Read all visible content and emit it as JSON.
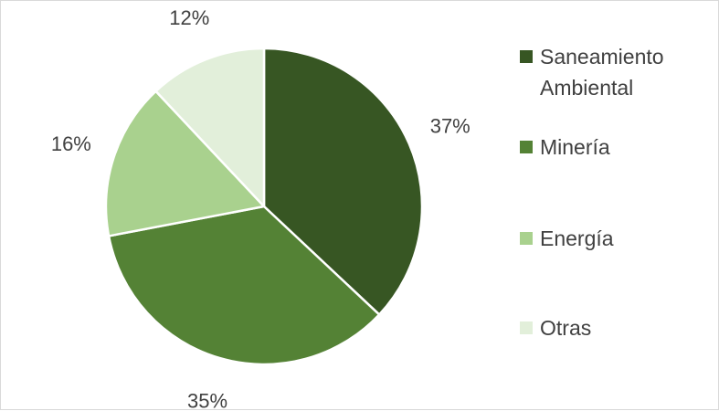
{
  "chart_data": {
    "type": "pie",
    "title": "",
    "categories": [
      "Saneamiento Ambiental",
      "Minería",
      "Energía",
      "Otras"
    ],
    "values": [
      37,
      35,
      16,
      12
    ],
    "labels": [
      "37%",
      "35%",
      "16%",
      "12%"
    ],
    "colors": [
      "#375623",
      "#548235",
      "#a9d18e",
      "#e2efda"
    ],
    "legend_position": "right"
  }
}
